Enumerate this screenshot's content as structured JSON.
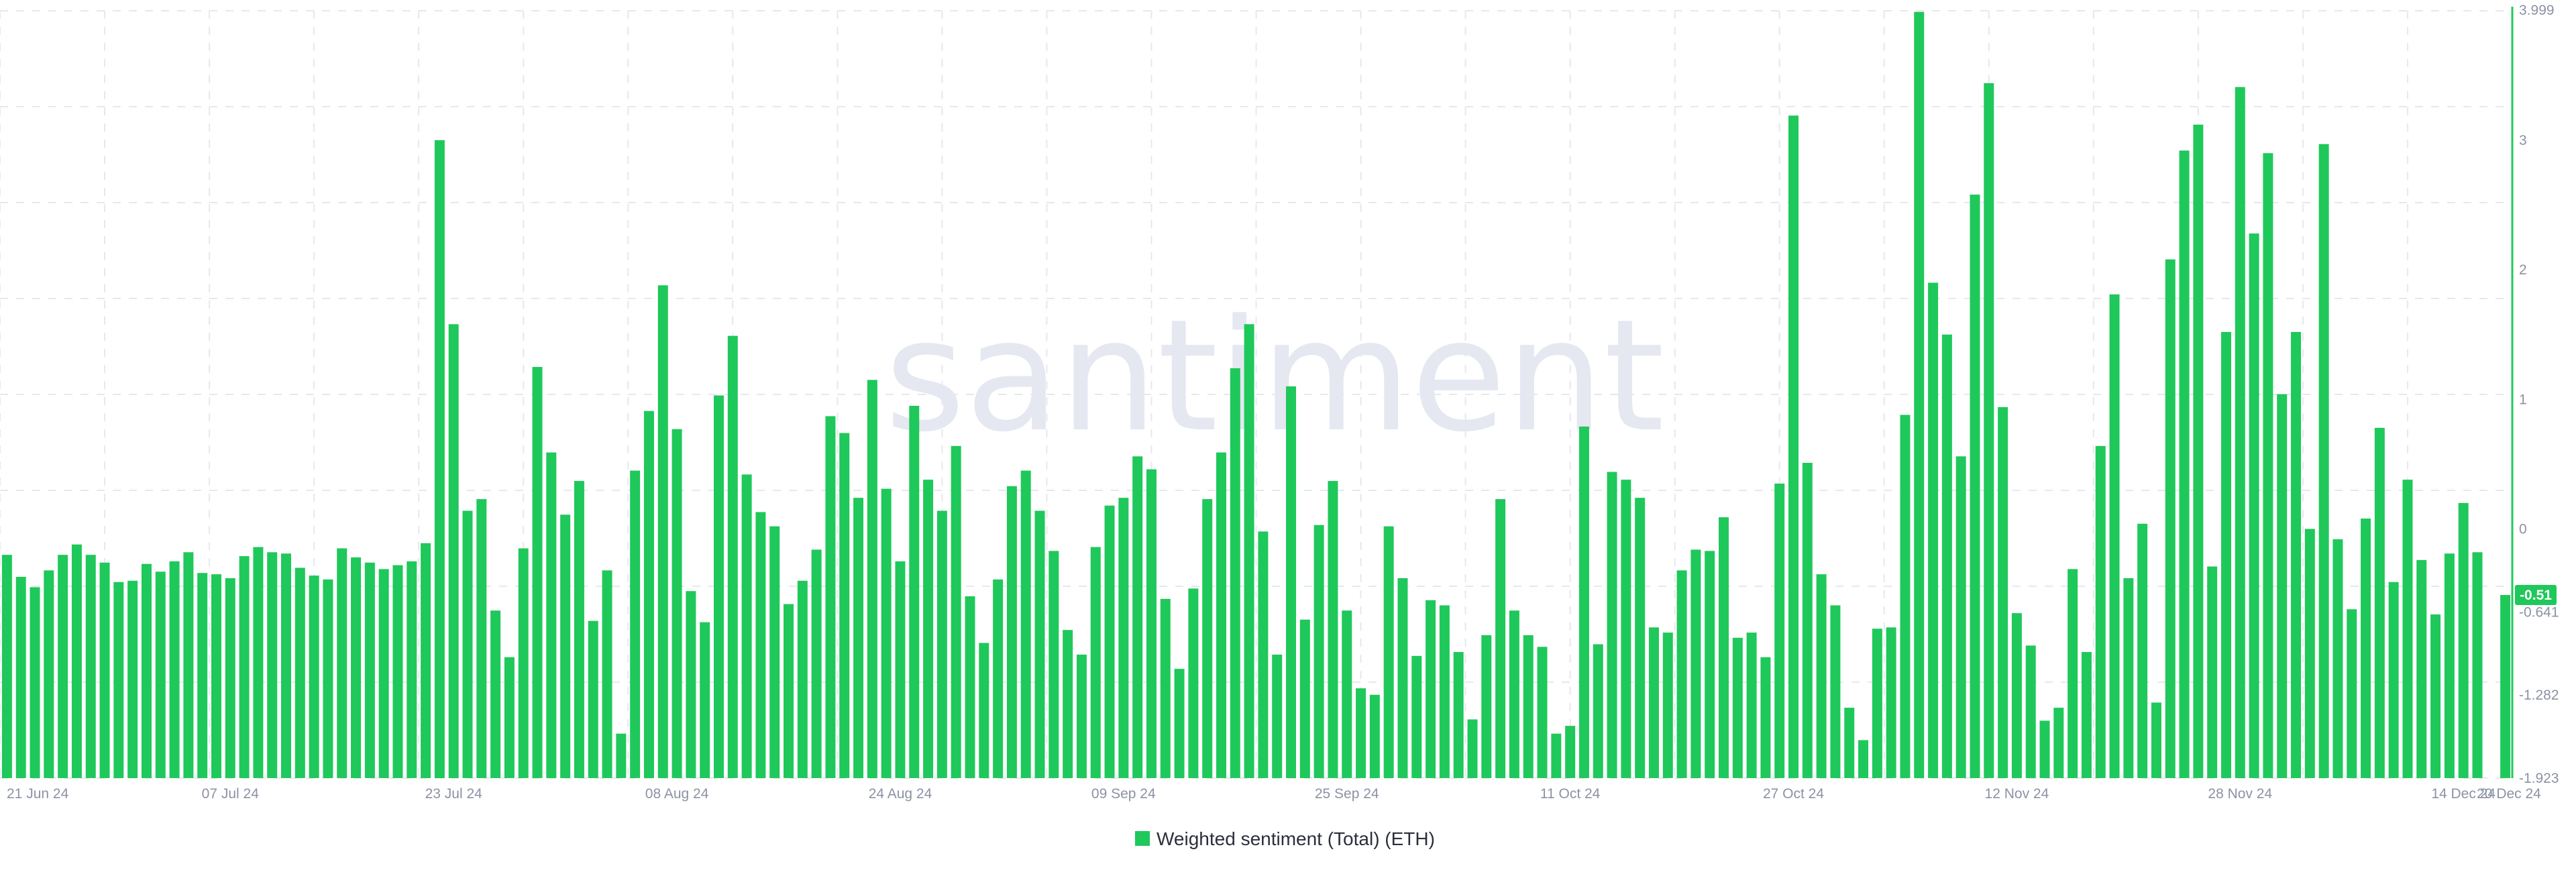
{
  "watermark": "santiment",
  "colors": {
    "bar": "#1fc85a",
    "grid": "#e6e8ef",
    "axis_text": "#8c92a4",
    "current_badge": "#1fc85a"
  },
  "chart_data": {
    "type": "bar",
    "title": "",
    "xlabel": "",
    "ylabel": "",
    "ylim": [
      -1.923,
      3.999
    ],
    "y_ticks": [
      "3.999",
      "3",
      "2",
      "1",
      "0",
      "-0.641",
      "-1.282",
      "-1.923"
    ],
    "y_tick_values": [
      3.999,
      3,
      2,
      1,
      0,
      -0.641,
      -1.282,
      -1.923
    ],
    "current_value_label": "-0.51",
    "current_value": -0.51,
    "x_tick_labels": [
      "21 Jun 24",
      "07 Jul 24",
      "23 Jul 24",
      "08 Aug 24",
      "24 Aug 24",
      "09 Sep 24",
      "25 Sep 24",
      "11 Oct 24",
      "27 Oct 24",
      "12 Nov 24",
      "28 Nov 24",
      "14 Dec 24",
      "20 Dec 24"
    ],
    "x_tick_indices": [
      0,
      16,
      32,
      48,
      64,
      80,
      96,
      112,
      128,
      144,
      160,
      176,
      182
    ],
    "series": [
      {
        "name": "Weighted sentiment (Total) (ETH)",
        "values": [
          -0.2,
          -0.37,
          -0.45,
          -0.32,
          -0.2,
          -0.12,
          -0.2,
          -0.26,
          -0.41,
          -0.4,
          -0.27,
          -0.33,
          -0.25,
          -0.18,
          -0.34,
          -0.35,
          -0.38,
          -0.21,
          -0.14,
          -0.18,
          -0.19,
          -0.3,
          -0.36,
          -0.39,
          -0.15,
          -0.22,
          -0.26,
          -0.31,
          -0.28,
          -0.25,
          -0.11,
          3.0,
          1.58,
          0.14,
          0.23,
          -0.63,
          -0.99,
          -0.15,
          1.25,
          0.59,
          0.11,
          0.37,
          -0.71,
          -0.32,
          -1.58,
          0.45,
          0.91,
          1.88,
          0.77,
          -0.48,
          -0.72,
          1.03,
          1.49,
          0.42,
          0.13,
          0.02,
          -0.58,
          -0.4,
          -0.16,
          0.87,
          0.74,
          0.24,
          1.15,
          0.31,
          -0.25,
          0.95,
          0.38,
          0.14,
          0.64,
          -0.52,
          -0.88,
          -0.39,
          0.33,
          0.45,
          0.14,
          -0.17,
          -0.78,
          -0.97,
          -0.14,
          0.18,
          0.24,
          0.56,
          0.46,
          -0.54,
          -1.08,
          -0.46,
          0.23,
          0.59,
          1.24,
          1.58,
          -0.02,
          -0.97,
          1.1,
          -0.7,
          0.03,
          0.37,
          -0.63,
          -1.23,
          -1.28,
          0.02,
          -0.38,
          -0.98,
          -0.55,
          -0.59,
          -0.95,
          -1.47,
          -0.82,
          0.23,
          -0.63,
          -0.82,
          -0.91,
          -1.58,
          -1.52,
          0.79,
          -0.89,
          0.44,
          0.38,
          0.24,
          -0.76,
          -0.8,
          -0.32,
          -0.16,
          -0.17,
          0.09,
          -0.84,
          -0.8,
          -0.99,
          0.35,
          3.19,
          0.51,
          -0.35,
          -0.59,
          -1.38,
          -1.63,
          -0.77,
          -0.76,
          0.88,
          3.99,
          1.9,
          1.5,
          0.56,
          2.58,
          3.44,
          0.94,
          -0.65,
          -0.9,
          -1.48,
          -1.38,
          -0.31,
          -0.95,
          0.64,
          1.81,
          -0.38,
          0.04,
          -1.34,
          2.08,
          2.92,
          3.12,
          -0.29,
          1.52,
          3.41,
          2.28,
          2.9,
          1.04,
          1.52,
          0.0,
          2.97,
          -0.08,
          -0.62,
          0.08,
          0.78,
          -0.41,
          0.38,
          -0.24,
          -0.66,
          -0.19,
          0.2,
          -0.18,
          -1.14,
          -0.51
        ]
      }
    ],
    "gap_indices": [
      178,
      179,
      182
    ],
    "legend": {
      "position": "bottom-center"
    }
  }
}
